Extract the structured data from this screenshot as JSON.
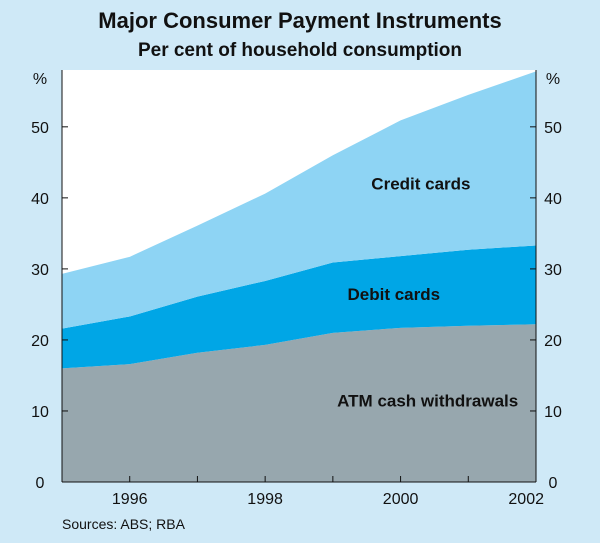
{
  "chart_data": {
    "type": "area",
    "title": "Major Consumer Payment Instruments",
    "subtitle": "Per cent of household consumption",
    "unit_left": "%",
    "unit_right": "%",
    "source": "Sources: ABS; RBA",
    "x": [
      1995,
      1996,
      1997,
      1998,
      1999,
      2000,
      2001,
      2002
    ],
    "xlim": [
      1995,
      2002
    ],
    "ylim": [
      0,
      58
    ],
    "yticks": [
      0,
      10,
      20,
      30,
      40,
      50
    ],
    "xticks": [
      {
        "value": 1996,
        "label": "1996"
      },
      {
        "value": 1998,
        "label": "1998"
      },
      {
        "value": 2000,
        "label": "2000"
      },
      {
        "value": 2002,
        "label": "2002"
      }
    ],
    "stacked": true,
    "series": [
      {
        "name": "ATM cash withdrawals",
        "label": "ATM cash withdrawals",
        "color": "#97a7ae",
        "values": [
          16.0,
          16.6,
          18.2,
          19.3,
          21.0,
          21.7,
          22.0,
          22.2
        ],
        "label_pos": {
          "x": 2000.4,
          "y": 11.5
        }
      },
      {
        "name": "Debit cards",
        "label": "Debit cards",
        "color": "#00a6e6",
        "values": [
          5.6,
          6.7,
          7.9,
          9.0,
          9.9,
          10.1,
          10.7,
          11.1
        ],
        "label_pos": {
          "x": 1999.9,
          "y": 26.5
        }
      },
      {
        "name": "Credit cards",
        "label": "Credit cards",
        "color": "#8ed4f4",
        "values": [
          7.7,
          8.4,
          10.0,
          12.3,
          15.1,
          19.1,
          21.8,
          24.5
        ],
        "label_pos": {
          "x": 2000.3,
          "y": 42.0
        }
      }
    ]
  }
}
